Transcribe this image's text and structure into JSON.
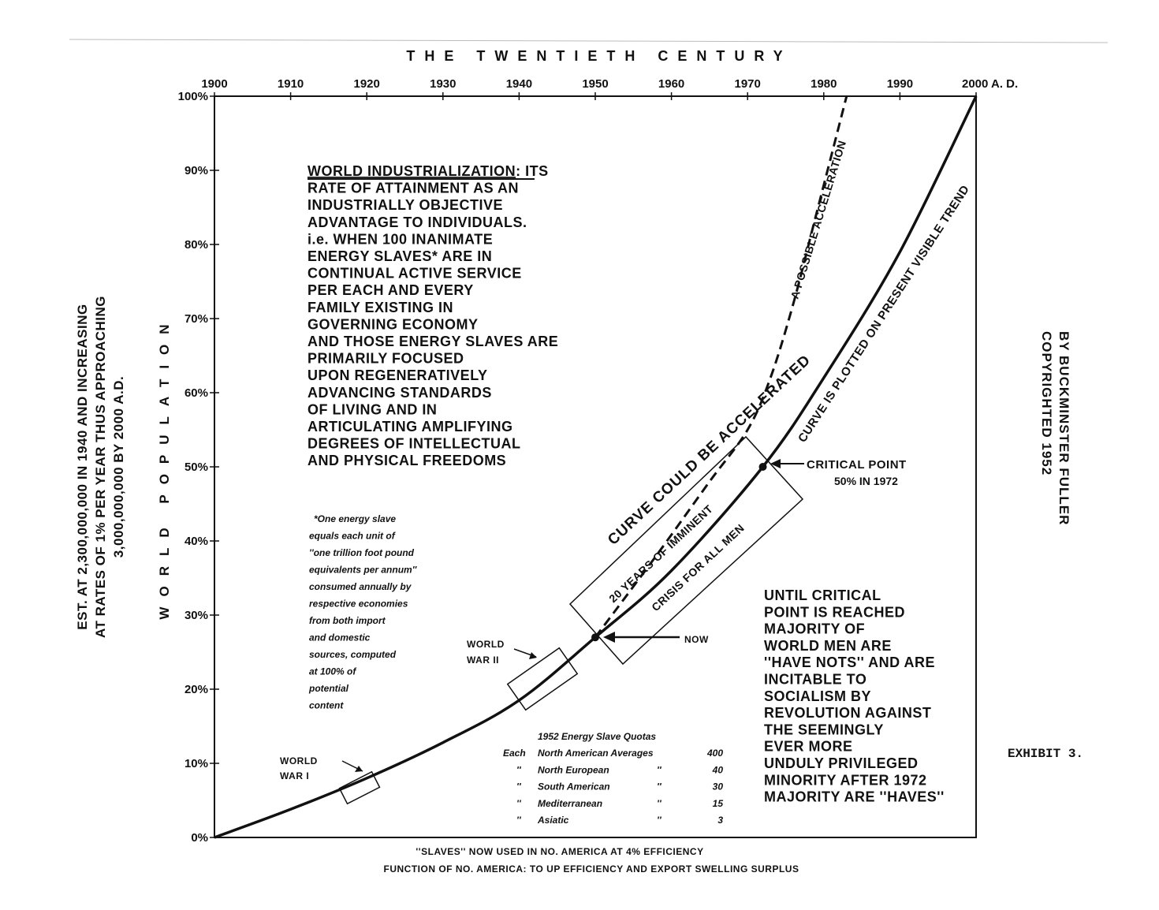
{
  "chart_data": {
    "type": "line",
    "title": "THE TWENTIETH CENTURY",
    "xlabel": "",
    "ylabel": "WORLD POPULATION",
    "xlim": [
      1900,
      2000
    ],
    "ylim": [
      0,
      100
    ],
    "x_ticks": [
      "1900",
      "1910",
      "1920",
      "1930",
      "1940",
      "1950",
      "1960",
      "1970",
      "1980",
      "1990",
      "2000 A. D."
    ],
    "y_ticks": [
      "0%",
      "10%",
      "20%",
      "30%",
      "40%",
      "50%",
      "60%",
      "70%",
      "80%",
      "90%",
      "100%"
    ],
    "series": [
      {
        "name": "CURVE IS PLOTTED ON PRESENT VISIBLE TREND",
        "style": "solid",
        "x": [
          1900,
          1910,
          1920,
          1930,
          1940,
          1950,
          1960,
          1972,
          1980,
          1990,
          2000
        ],
        "y": [
          0,
          3.8,
          8.0,
          12.8,
          18.5,
          27.0,
          36.0,
          50.0,
          62.0,
          79.0,
          100.0
        ]
      },
      {
        "name": "A POSSIBLE ACCELERATION",
        "style": "dashed",
        "x": [
          1950,
          1958,
          1965,
          1970,
          1973,
          1976,
          1979,
          1983
        ],
        "y": [
          27.0,
          38.0,
          48.0,
          55.0,
          62.0,
          72.0,
          84.0,
          100.0
        ]
      }
    ],
    "left_vertical_text": [
      "EST. AT 2,300,000,000 IN 1940 AND INCREASING",
      "AT RATES OF 1% PER YEAR THUS APPROACHING",
      "3,000,000,000 BY 2000 A.D."
    ],
    "main_text": [
      "WORLD INDUSTRIALIZATION",
      ": ITS",
      "RATE OF ATTAINMENT AS AN",
      "INDUSTRIALLY OBJECTIVE",
      "ADVANTAGE TO INDIVIDUALS.",
      "i.e. WHEN 100 INANIMATE",
      "ENERGY SLAVES* ARE IN",
      "CONTINUAL ACTIVE SERVICE",
      "PER EACH AND EVERY",
      "FAMILY EXISTING IN",
      "GOVERNING ECONOMY",
      "AND THOSE ENERGY SLAVES ARE",
      "PRIMARILY FOCUSED",
      "UPON REGENERATIVELY",
      "ADVANCING STANDARDS",
      "OF LIVING AND IN",
      "ARTICULATING AMPLIFYING",
      "DEGREES OF INTELLECTUAL",
      "AND PHYSICAL FREEDOMS"
    ],
    "footnote": [
      "*One energy slave",
      "equals each unit of",
      "''one trillion foot pound",
      "equivalents per annum''",
      "consumed annually by",
      "respective economies",
      "from both import",
      "and domestic",
      "sources, computed",
      "at 100% of",
      "potential",
      "content"
    ],
    "quota_table": {
      "title": "1952 Energy Slave Quotas",
      "rows": [
        {
          "prefix": "Each",
          "region": "North American Averages",
          "ditto": "",
          "value": "400"
        },
        {
          "prefix": "''",
          "region": "North European",
          "ditto": "''",
          "value": "40"
        },
        {
          "prefix": "''",
          "region": "South American",
          "ditto": "''",
          "value": "30"
        },
        {
          "prefix": "''",
          "region": "Mediterranean",
          "ditto": "''",
          "value": "15"
        },
        {
          "prefix": "''",
          "region": "Asiatic",
          "ditto": "''",
          "value": "3"
        }
      ]
    },
    "right_text": [
      "UNTIL CRITICAL",
      "POINT IS REACHED",
      "MAJORITY OF",
      "WORLD MEN ARE",
      "''HAVE NOTS'' AND ARE",
      "INCITABLE TO",
      "SOCIALISM BY",
      "REVOLUTION AGAINST",
      "THE SEEMINGLY",
      "EVER MORE",
      "UNDULY PRIVILEGED",
      "MINORITY AFTER 1972",
      "MAJORITY ARE ''HAVES''"
    ],
    "annotations": {
      "ww1": [
        "WORLD",
        "WAR I"
      ],
      "ww2": [
        "WORLD",
        "WAR II"
      ],
      "now": "NOW",
      "critical": [
        "CRITICAL POINT",
        "50% IN 1972"
      ],
      "curve_accel": "CURVE COULD BE ACCELERATED",
      "years_imminent": "20 YEARS OF IMMINENT",
      "crisis": "CRISIS FOR ALL MEN",
      "possible_accel": "A POSSIBLE ACCELERATION",
      "present_trend": "CURVE IS PLOTTED ON PRESENT VISIBLE TREND"
    },
    "copyright": [
      "COPYRIGHTED 1952",
      "BY BUCKMINSTER FULLER"
    ],
    "exhibit": "EXHIBIT 3.",
    "bottom_notes": [
      "''SLAVES'' NOW USED IN NO. AMERICA AT 4% EFFICIENCY",
      "FUNCTION OF NO. AMERICA:  TO UP EFFICIENCY AND EXPORT SWELLING SURPLUS"
    ]
  }
}
